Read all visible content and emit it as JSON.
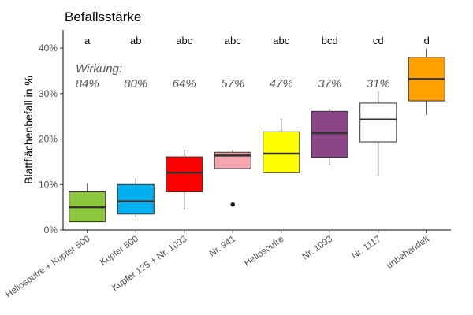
{
  "chart_data": {
    "type": "box",
    "title": "Befallsstärke",
    "ylabel": "Blattflächenbefall in %",
    "xlabel": "",
    "ylim": [
      0,
      44
    ],
    "yticks": [
      0,
      10,
      20,
      30,
      40
    ],
    "ytick_labels": [
      "0%",
      "10%",
      "20%",
      "30%",
      "40%"
    ],
    "grid": false,
    "annotation_label": "Wirkung:",
    "categories": [
      "Heliosoufre + Kupfer 500",
      "Kupfer 500",
      "Kupfer 125 + Nr. 1093",
      "Nr. 941",
      "Heliosoufre",
      "Nr. 1093",
      "Nr. 1117",
      "unbehandelt"
    ],
    "letters": [
      "a",
      "ab",
      "abc",
      "abc",
      "abc",
      "bcd",
      "cd",
      "d"
    ],
    "wirkung": [
      "84%",
      "80%",
      "64%",
      "57%",
      "47%",
      "37%",
      "31%",
      ""
    ],
    "boxes": [
      {
        "whisker_low": 1.8,
        "q1": 1.8,
        "median": 5.0,
        "q3": 8.4,
        "whisker_high": 10.2,
        "outliers": []
      },
      {
        "whisker_low": 2.8,
        "q1": 3.5,
        "median": 6.3,
        "q3": 10.0,
        "whisker_high": 11.5,
        "outliers": []
      },
      {
        "whisker_low": 4.5,
        "q1": 8.4,
        "median": 12.6,
        "q3": 16.1,
        "whisker_high": 17.6,
        "outliers": []
      },
      {
        "whisker_low": 13.5,
        "q1": 13.5,
        "median": 16.4,
        "q3": 17.1,
        "whisker_high": 17.6,
        "outliers": [
          5.6
        ]
      },
      {
        "whisker_low": 12.6,
        "q1": 12.6,
        "median": 16.8,
        "q3": 21.6,
        "whisker_high": 24.4,
        "outliers": []
      },
      {
        "whisker_low": 14.4,
        "q1": 16.0,
        "median": 21.3,
        "q3": 26.1,
        "whisker_high": 26.6,
        "outliers": []
      },
      {
        "whisker_low": 11.9,
        "q1": 19.4,
        "median": 24.3,
        "q3": 27.9,
        "whisker_high": 30.6,
        "outliers": []
      },
      {
        "whisker_low": 25.3,
        "q1": 28.4,
        "median": 33.2,
        "q3": 38.0,
        "whisker_high": 39.9,
        "outliers": []
      }
    ],
    "colors": [
      "#8dc63f",
      "#00b0f0",
      "#ff0000",
      "#f4a7b0",
      "#ffff00",
      "#8b4589",
      "#ffffff",
      "#ff9f00"
    ]
  }
}
